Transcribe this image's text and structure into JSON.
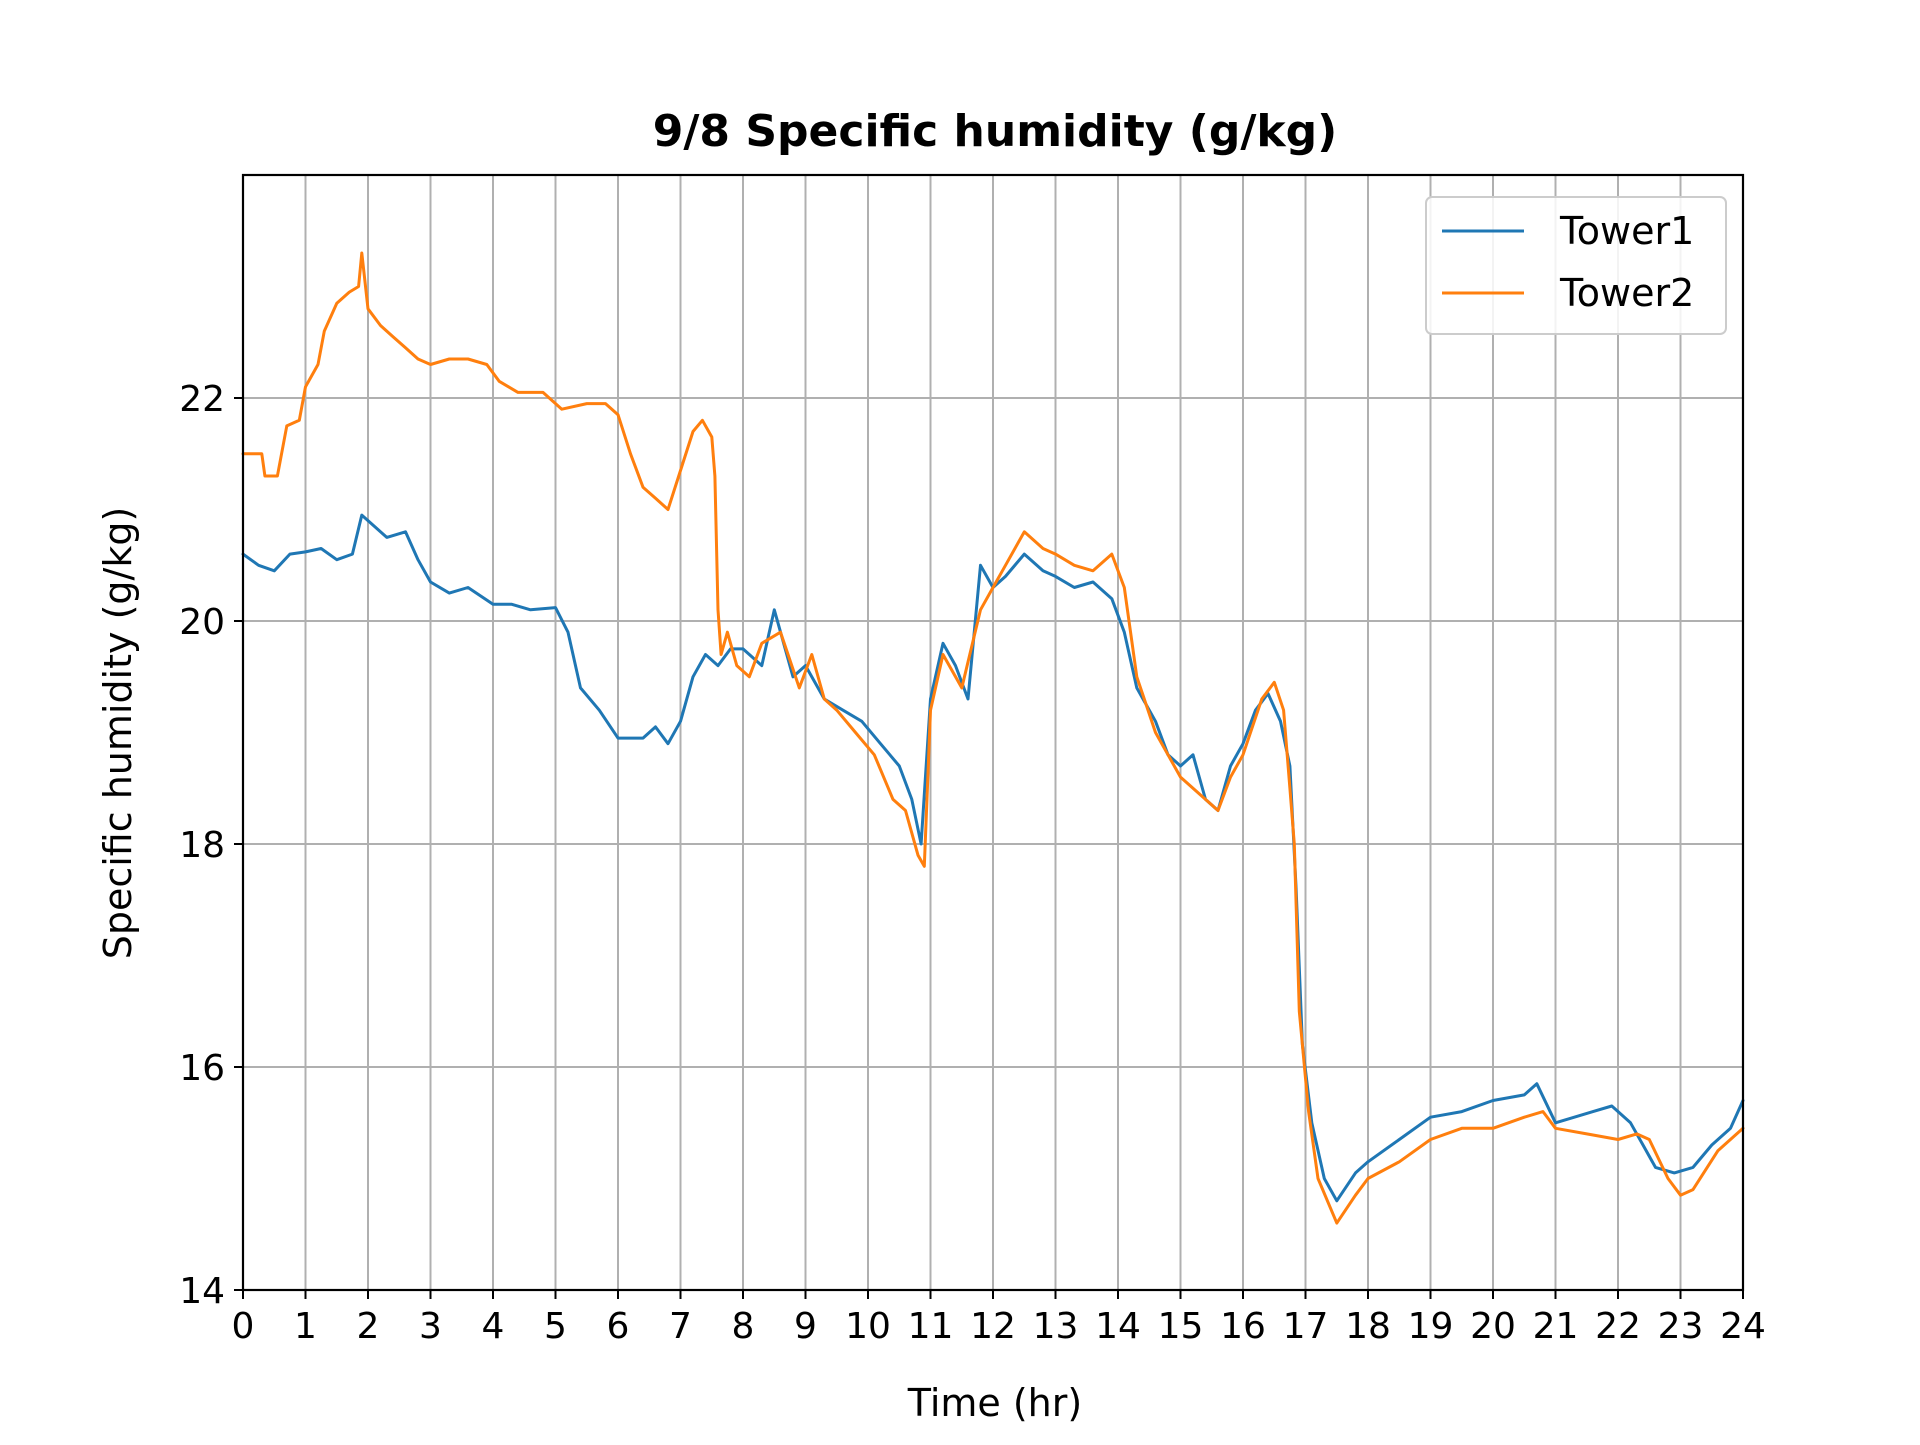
{
  "chart_data": {
    "type": "line",
    "title": "9/8 Specific humidity (g/kg)",
    "xlabel": "Time (hr)",
    "ylabel": "Specific humidity (g/kg)",
    "xlim": [
      0,
      24
    ],
    "ylim": [
      14,
      24
    ],
    "x_ticks": [
      "0",
      "1",
      "2",
      "3",
      "4",
      "5",
      "6",
      "7",
      "8",
      "9",
      "10",
      "11",
      "12",
      "13",
      "14",
      "15",
      "16",
      "17",
      "18",
      "19",
      "20",
      "21",
      "22",
      "23",
      "24"
    ],
    "y_ticks": [
      "14",
      "16",
      "18",
      "20",
      "22"
    ],
    "grid": true,
    "legend_position": "top-right",
    "colors": {
      "Tower1": "#1f77b4",
      "Tower2": "#ff7f0e",
      "grid": "#b0b0b0"
    },
    "series": [
      {
        "name": "Tower1",
        "x": [
          0,
          0.25,
          0.5,
          0.75,
          1.0,
          1.25,
          1.5,
          1.75,
          1.9,
          2.1,
          2.3,
          2.6,
          2.8,
          3.0,
          3.3,
          3.6,
          4.0,
          4.3,
          4.6,
          5.0,
          5.2,
          5.4,
          5.7,
          6.0,
          6.4,
          6.6,
          6.8,
          7.0,
          7.2,
          7.4,
          7.6,
          7.8,
          8.0,
          8.3,
          8.5,
          8.8,
          9.0,
          9.3,
          9.6,
          9.9,
          10.2,
          10.5,
          10.7,
          10.85,
          11.0,
          11.2,
          11.4,
          11.6,
          11.8,
          12.0,
          12.2,
          12.5,
          12.8,
          13.0,
          13.3,
          13.6,
          13.9,
          14.1,
          14.3,
          14.6,
          14.8,
          15.0,
          15.2,
          15.4,
          15.6,
          15.8,
          16.0,
          16.2,
          16.4,
          16.6,
          16.75,
          16.85,
          16.95,
          17.1,
          17.3,
          17.5,
          17.8,
          18.0,
          18.5,
          19.0,
          19.5,
          20.0,
          20.5,
          20.7,
          21.0,
          21.3,
          21.6,
          21.9,
          22.2,
          22.4,
          22.6,
          22.9,
          23.2,
          23.5,
          23.8,
          24.0
        ],
        "y": [
          20.6,
          20.5,
          20.45,
          20.6,
          20.62,
          20.65,
          20.55,
          20.6,
          20.95,
          20.85,
          20.75,
          20.8,
          20.55,
          20.35,
          20.25,
          20.3,
          20.15,
          20.15,
          20.1,
          20.12,
          19.9,
          19.4,
          19.2,
          18.95,
          18.95,
          19.05,
          18.9,
          19.1,
          19.5,
          19.7,
          19.6,
          19.75,
          19.75,
          19.6,
          20.1,
          19.5,
          19.6,
          19.3,
          19.2,
          19.1,
          18.9,
          18.7,
          18.4,
          18.0,
          19.3,
          19.8,
          19.6,
          19.3,
          20.5,
          20.3,
          20.4,
          20.6,
          20.45,
          20.4,
          20.3,
          20.35,
          20.2,
          19.9,
          19.4,
          19.1,
          18.8,
          18.7,
          18.8,
          18.4,
          18.3,
          18.7,
          18.9,
          19.2,
          19.35,
          19.1,
          18.7,
          17.6,
          16.2,
          15.5,
          15.0,
          14.8,
          15.05,
          15.15,
          15.35,
          15.55,
          15.6,
          15.7,
          15.75,
          15.85,
          15.5,
          15.55,
          15.6,
          15.65,
          15.5,
          15.3,
          15.1,
          15.05,
          15.1,
          15.3,
          15.45,
          15.7
        ]
      },
      {
        "name": "Tower2",
        "x": [
          0,
          0.3,
          0.35,
          0.55,
          0.7,
          0.9,
          1.0,
          1.2,
          1.3,
          1.5,
          1.7,
          1.85,
          1.9,
          2.0,
          2.2,
          2.4,
          2.6,
          2.8,
          3.0,
          3.3,
          3.6,
          3.9,
          4.1,
          4.4,
          4.8,
          5.1,
          5.5,
          5.8,
          6.0,
          6.2,
          6.4,
          6.6,
          6.8,
          7.0,
          7.2,
          7.35,
          7.5,
          7.55,
          7.6,
          7.65,
          7.75,
          7.9,
          8.1,
          8.3,
          8.6,
          8.9,
          9.1,
          9.3,
          9.5,
          9.8,
          10.1,
          10.4,
          10.6,
          10.8,
          10.9,
          11.0,
          11.2,
          11.5,
          11.8,
          12.0,
          12.2,
          12.5,
          12.8,
          13.0,
          13.3,
          13.6,
          13.9,
          14.1,
          14.3,
          14.6,
          14.8,
          15.0,
          15.2,
          15.4,
          15.6,
          15.8,
          16.0,
          16.3,
          16.5,
          16.65,
          16.75,
          16.82,
          16.9,
          17.05,
          17.2,
          17.35,
          17.5,
          17.8,
          18.0,
          18.5,
          19.0,
          19.5,
          20.0,
          20.5,
          20.8,
          21.0,
          21.5,
          22.0,
          22.3,
          22.5,
          22.8,
          23.0,
          23.2,
          23.6,
          24.0
        ],
        "y": [
          21.5,
          21.5,
          21.3,
          21.3,
          21.75,
          21.8,
          22.1,
          22.3,
          22.6,
          22.85,
          22.95,
          23.0,
          23.3,
          22.8,
          22.65,
          22.55,
          22.45,
          22.35,
          22.3,
          22.35,
          22.35,
          22.3,
          22.15,
          22.05,
          22.05,
          21.9,
          21.95,
          21.95,
          21.85,
          21.5,
          21.2,
          21.1,
          21.0,
          21.35,
          21.7,
          21.8,
          21.65,
          21.3,
          20.1,
          19.7,
          19.9,
          19.6,
          19.5,
          19.8,
          19.9,
          19.4,
          19.7,
          19.3,
          19.2,
          19.0,
          18.8,
          18.4,
          18.3,
          17.9,
          17.8,
          19.2,
          19.7,
          19.4,
          20.1,
          20.3,
          20.5,
          20.8,
          20.65,
          20.6,
          20.5,
          20.45,
          20.6,
          20.3,
          19.5,
          19.0,
          18.8,
          18.6,
          18.5,
          18.4,
          18.3,
          18.6,
          18.8,
          19.3,
          19.45,
          19.2,
          18.5,
          18.0,
          16.5,
          15.6,
          15.0,
          14.8,
          14.6,
          14.85,
          15.0,
          15.15,
          15.35,
          15.45,
          15.45,
          15.55,
          15.6,
          15.45,
          15.4,
          15.35,
          15.4,
          15.35,
          15.0,
          14.85,
          14.9,
          15.25,
          15.45
        ]
      }
    ]
  }
}
